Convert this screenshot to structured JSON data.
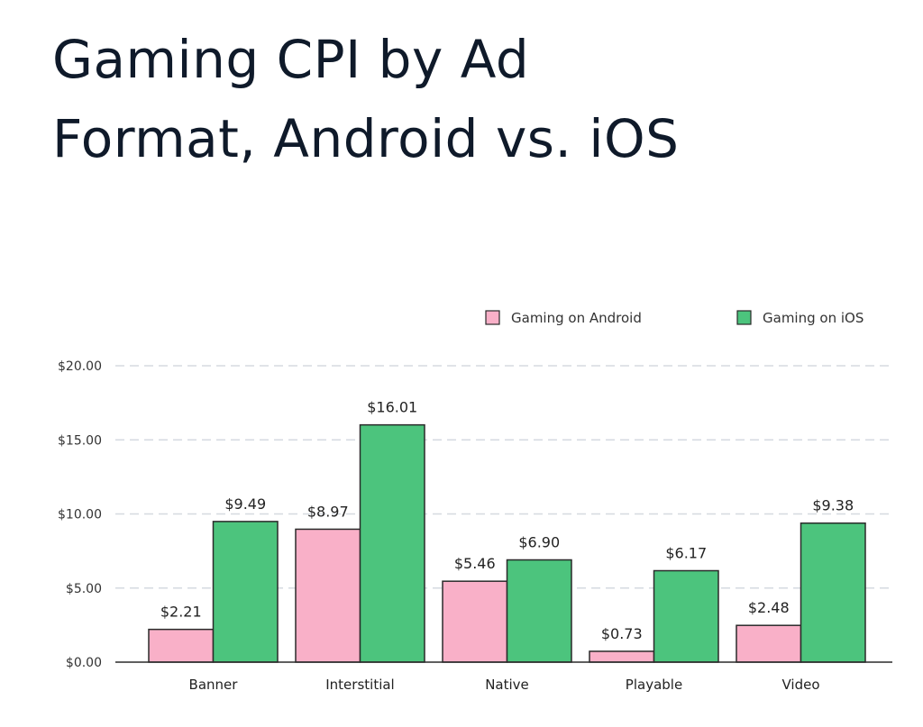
{
  "chart_data": {
    "type": "bar",
    "title": "Gaming CPI by Ad Format, Android vs. iOS",
    "title_lines": [
      "Gaming CPI by Ad",
      "Format, Android vs. iOS"
    ],
    "categories": [
      "Banner",
      "Interstitial",
      "Native",
      "Playable",
      "Video"
    ],
    "series": [
      {
        "name": "Gaming on Android",
        "color": "#f9b0c8",
        "values": [
          2.21,
          8.97,
          5.46,
          0.73,
          2.48
        ],
        "labels": [
          "$2.21",
          "$8.97",
          "$5.46",
          "$0.73",
          "$2.48"
        ]
      },
      {
        "name": "Gaming on iOS",
        "color": "#4cc47d",
        "values": [
          9.49,
          16.01,
          6.9,
          6.17,
          9.38
        ],
        "labels": [
          "$9.49",
          "$16.01",
          "$6.90",
          "$6.17",
          "$9.38"
        ]
      }
    ],
    "yticks": [
      0,
      5,
      10,
      15,
      20
    ],
    "ytick_labels": [
      "$0.00",
      "$5.00",
      "$10.00",
      "$15.00",
      "$20.00"
    ],
    "ylim": [
      0,
      20
    ],
    "xlabel": "",
    "ylabel": "",
    "grid": true,
    "legend": "top-right"
  }
}
